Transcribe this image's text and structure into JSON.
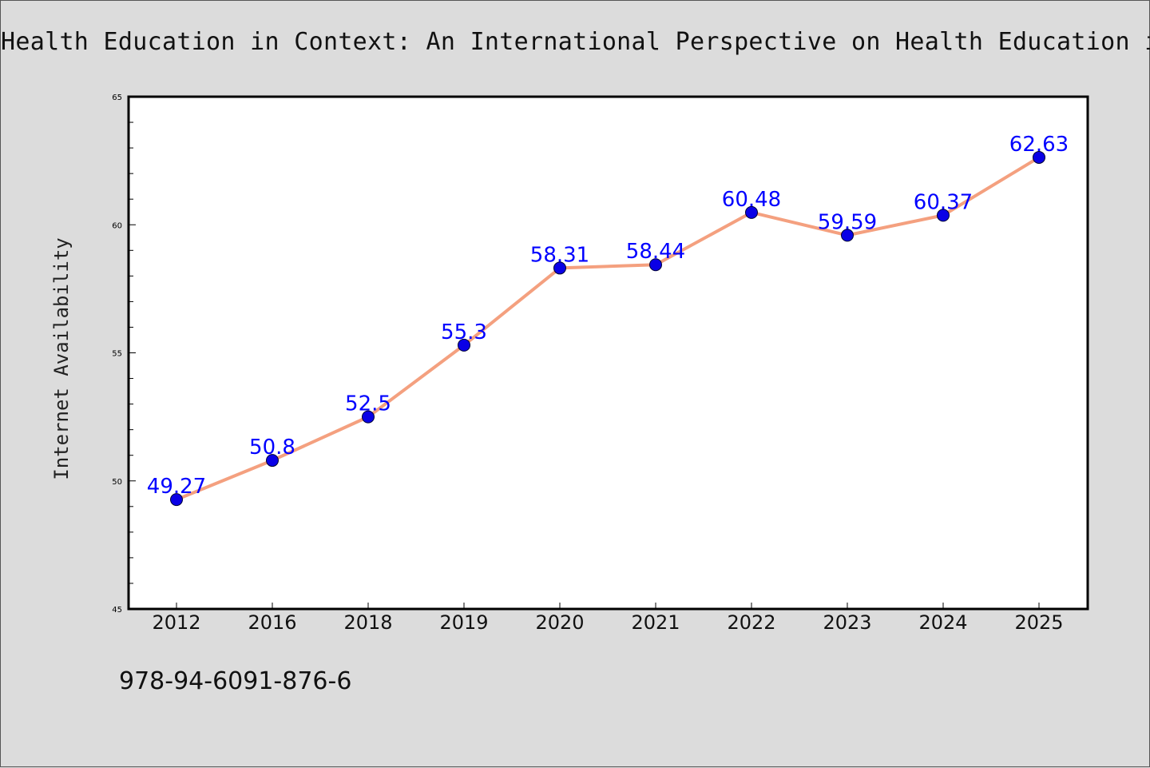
{
  "chart_data": {
    "type": "line",
    "title": "Health Education in Context: An International Perspective on Health Education in",
    "ylabel": "Internet Availability",
    "xlabel": "",
    "categories": [
      "2012",
      "2016",
      "2018",
      "2019",
      "2020",
      "2021",
      "2022",
      "2023",
      "2024",
      "2025"
    ],
    "values": [
      49.27,
      50.8,
      52.5,
      55.3,
      58.31,
      58.44,
      60.48,
      59.59,
      60.37,
      62.63
    ],
    "value_labels": [
      "49.27",
      "50.8",
      "52.5",
      "55.3",
      "58.31",
      "58.44",
      "60.48",
      "59.59",
      "60.37",
      "62.63"
    ],
    "ylim": [
      45,
      65
    ],
    "yticks": [
      "45",
      "50",
      "55",
      "60",
      "65"
    ],
    "grid": false,
    "line_color": "#f4a07f",
    "marker_color": "#0a00e6",
    "label_color": "#0000ff"
  },
  "footer": {
    "isbn": "978-94-6091-876-6"
  }
}
